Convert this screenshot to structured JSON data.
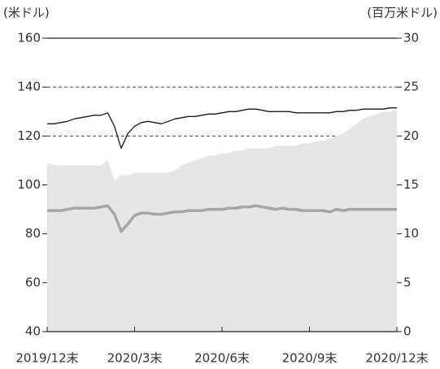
{
  "chart_data": {
    "type": "line",
    "y_label": "(米ドル)",
    "y2_label": "(百万米ドル)",
    "categories": [
      "2019/12末",
      null,
      null,
      null,
      null,
      null,
      null,
      null,
      null,
      null,
      null,
      null,
      null,
      "2020/3末",
      null,
      null,
      null,
      null,
      null,
      null,
      null,
      null,
      null,
      null,
      null,
      null,
      "2020/6末",
      null,
      null,
      null,
      null,
      null,
      null,
      null,
      null,
      null,
      null,
      null,
      null,
      "2020/9末",
      null,
      null,
      null,
      null,
      null,
      null,
      null,
      null,
      null,
      null,
      null,
      null,
      "2020/12末"
    ],
    "series": [
      {
        "type": "area",
        "axis": "y2",
        "color": "#e6e6e6",
        "values": [
          17.25,
          17,
          17,
          17,
          17,
          17,
          17,
          17,
          17,
          17.5,
          15.5,
          16,
          16,
          16.25,
          16.25,
          16.25,
          16.25,
          16.25,
          16.25,
          16.5,
          17,
          17.25,
          17.5,
          17.75,
          18,
          18,
          18.25,
          18.25,
          18.5,
          18.5,
          18.75,
          18.75,
          18.75,
          18.75,
          19,
          19,
          19,
          19,
          19.25,
          19.25,
          19.5,
          19.5,
          19.75,
          20,
          20.25,
          20.75,
          21.25,
          21.75,
          22,
          22.25,
          22.5,
          22.5,
          22.75
        ]
      },
      {
        "type": "line",
        "color": "#a6a6a6",
        "values": [
          89.5,
          89.5,
          89.5,
          90,
          90.5,
          90.5,
          90.5,
          90.5,
          91,
          91.5,
          88,
          81,
          84,
          87.5,
          88.5,
          88.5,
          88,
          88,
          88.5,
          89,
          89,
          89.5,
          89.5,
          89.5,
          90,
          90,
          90,
          90.5,
          90.5,
          91,
          91,
          91.5,
          91,
          90.5,
          90,
          90.5,
          90,
          90,
          89.5,
          89.5,
          89.5,
          89.5,
          89,
          90,
          89.5,
          90,
          90,
          90,
          90,
          90,
          90,
          90,
          90
        ]
      },
      {
        "type": "line",
        "color": "#1a1a1a",
        "values": [
          125,
          125,
          125.5,
          126,
          127,
          127.5,
          128,
          128.5,
          128.5,
          129.5,
          124,
          115,
          121,
          124,
          125.5,
          126,
          125.5,
          125,
          126,
          127,
          127.5,
          128,
          128,
          128.5,
          129,
          129,
          129.5,
          130,
          130,
          130.5,
          131,
          131,
          130.5,
          130,
          130,
          130,
          130,
          129.5,
          129.5,
          129.5,
          129.5,
          129.5,
          129.5,
          130,
          130,
          130.5,
          130.5,
          131,
          131,
          131,
          131,
          131.5,
          131.5
        ]
      }
    ],
    "ylim": [
      40,
      160
    ],
    "yticks": [
      40,
      60,
      80,
      100,
      120,
      140,
      160
    ],
    "y2lim": [
      0,
      30
    ],
    "y2ticks": [
      0,
      5,
      10,
      15,
      20,
      25,
      30
    ],
    "grid": true
  }
}
